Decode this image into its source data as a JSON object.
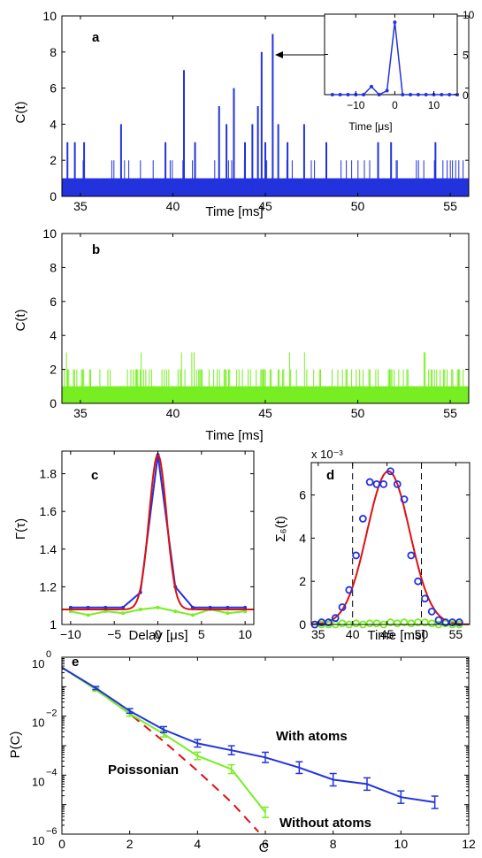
{
  "colors": {
    "with_atoms": "#2233dd",
    "without_atoms": "#77ee22",
    "fit": "#dd1111",
    "axis": "#000000"
  },
  "chart_data": [
    {
      "panel": "a",
      "type": "bar",
      "xlabel": "Time [ms]",
      "ylabel": "C(t)",
      "xlim": [
        34,
        56
      ],
      "ylim": [
        0,
        10
      ],
      "xticks": [
        35,
        40,
        45,
        50,
        55
      ],
      "yticks": [
        0,
        2,
        4,
        6,
        8,
        10
      ],
      "color": "#2233dd",
      "baseline": 1,
      "spikes": [
        {
          "x": 34.3,
          "y": 3
        },
        {
          "x": 34.7,
          "y": 3
        },
        {
          "x": 35.2,
          "y": 3
        },
        {
          "x": 37.2,
          "y": 4
        },
        {
          "x": 39.6,
          "y": 3
        },
        {
          "x": 40.6,
          "y": 7
        },
        {
          "x": 41.2,
          "y": 3
        },
        {
          "x": 42.5,
          "y": 5
        },
        {
          "x": 42.9,
          "y": 4
        },
        {
          "x": 43.3,
          "y": 6
        },
        {
          "x": 43.9,
          "y": 3
        },
        {
          "x": 44.3,
          "y": 4
        },
        {
          "x": 44.6,
          "y": 5
        },
        {
          "x": 44.8,
          "y": 8
        },
        {
          "x": 45.0,
          "y": 3
        },
        {
          "x": 45.4,
          "y": 9
        },
        {
          "x": 45.7,
          "y": 4
        },
        {
          "x": 46.2,
          "y": 3
        },
        {
          "x": 47.1,
          "y": 4
        },
        {
          "x": 48.3,
          "y": 3
        },
        {
          "x": 51.1,
          "y": 3
        },
        {
          "x": 51.8,
          "y": 3
        },
        {
          "x": 54.2,
          "y": 3
        }
      ],
      "inset": {
        "type": "line",
        "xlabel": "Time [μs]",
        "xlim": [
          -18,
          16
        ],
        "ylim": [
          0,
          10
        ],
        "xticks": [
          -10,
          0,
          10
        ],
        "yticks": [
          0,
          5,
          10
        ],
        "x": [
          -16,
          -14,
          -12,
          -10,
          -8,
          -6,
          -4,
          -2,
          0,
          2,
          4,
          6,
          8,
          10,
          12,
          14,
          16
        ],
        "y": [
          0,
          0,
          0,
          0,
          0,
          1,
          0,
          0.5,
          9,
          0,
          0,
          0,
          0,
          0,
          0,
          0,
          0
        ]
      }
    },
    {
      "panel": "b",
      "type": "bar",
      "xlabel": "Time [ms]",
      "ylabel": "C(t)",
      "xlim": [
        34,
        56
      ],
      "ylim": [
        0,
        10
      ],
      "xticks": [
        35,
        40,
        45,
        50,
        55
      ],
      "yticks": [
        0,
        2,
        4,
        6,
        8,
        10
      ],
      "color": "#77ee22",
      "baseline": 1,
      "max_value": 3
    },
    {
      "panel": "c",
      "type": "line",
      "xlabel": "Delay [μs]",
      "ylabel": "Γ(τ)",
      "xlim": [
        -11,
        11
      ],
      "ylim": [
        1.0,
        1.92
      ],
      "xticks": [
        -10,
        -5,
        0,
        5,
        10
      ],
      "yticks": [
        1,
        1.2,
        1.4,
        1.6,
        1.8
      ],
      "series": [
        {
          "color": "#2233dd",
          "x": [
            -10,
            -8,
            -6,
            -4,
            -2,
            0,
            2,
            4,
            6,
            8,
            10
          ],
          "y": [
            1.09,
            1.09,
            1.09,
            1.09,
            1.17,
            1.9,
            1.2,
            1.09,
            1.09,
            1.09,
            1.09
          ]
        },
        {
          "color": "#77ee22",
          "x": [
            -10,
            -8,
            -6,
            -4,
            -2,
            0,
            2,
            4,
            6,
            8,
            10
          ],
          "y": [
            1.07,
            1.05,
            1.07,
            1.06,
            1.08,
            1.09,
            1.07,
            1.05,
            1.08,
            1.06,
            1.07
          ]
        },
        {
          "color": "#dd1111",
          "fit": "gaussian",
          "amplitude": 0.82,
          "offset": 1.08,
          "sigma": 1.0
        }
      ]
    },
    {
      "panel": "d",
      "type": "scatter",
      "xlabel": "Time [ms]",
      "ylabel": "Σ₆(t)",
      "exponent_label": "x 10⁻³",
      "xlim": [
        34,
        57
      ],
      "ylim": [
        0,
        7.5
      ],
      "xticks": [
        35,
        40,
        45,
        50,
        55
      ],
      "yticks": [
        0,
        2,
        4,
        6
      ],
      "dashed_lines_x": [
        40,
        50
      ],
      "series": [
        {
          "color": "#2233dd",
          "x": [
            34.5,
            35.5,
            36.5,
            37.5,
            38.5,
            39.5,
            40.5,
            41.5,
            42.5,
            43.5,
            44.5,
            45.5,
            46.5,
            47.5,
            48.5,
            49.5,
            50.5,
            51.5,
            52.5,
            53.5,
            54.5,
            55.5
          ],
          "y": [
            0,
            0.1,
            0.1,
            0.3,
            0.8,
            1.6,
            3.2,
            4.9,
            6.6,
            6.5,
            6.5,
            7.1,
            6.5,
            5.8,
            3.2,
            2.0,
            1.2,
            0.6,
            0.2,
            0.1,
            0.1,
            0.1
          ]
        },
        {
          "color": "#77ee22",
          "x": [
            34.5,
            35.5,
            36.5,
            37.5,
            38.5,
            39.5,
            40.5,
            41.5,
            42.5,
            43.5,
            44.5,
            45.5,
            46.5,
            47.5,
            48.5,
            49.5,
            50.5,
            51.5,
            52.5,
            53.5,
            54.5,
            55.5
          ],
          "y": [
            0,
            0,
            0,
            0,
            0.05,
            0,
            0.05,
            0,
            0.05,
            0.05,
            0,
            0.1,
            0.05,
            0.1,
            0.05,
            0.1,
            0.1,
            0.05,
            0,
            0.05,
            0,
            0
          ]
        },
        {
          "color": "#dd1111",
          "fit": "gaussian",
          "amplitude": 7.1,
          "center": 45.2,
          "sigma": 3.1
        }
      ]
    },
    {
      "panel": "e",
      "type": "line",
      "xlabel": "C",
      "ylabel": "P(C)",
      "yscale": "log",
      "xlim": [
        0,
        12
      ],
      "ylim": [
        1e-06,
        1
      ],
      "xticks": [
        0,
        2,
        4,
        6,
        8,
        10,
        12
      ],
      "ytick_labels": [
        {
          "base": "10",
          "exp": "0"
        },
        {
          "base": "10",
          "exp": "−2"
        },
        {
          "base": "10",
          "exp": "−4"
        },
        {
          "base": "10",
          "exp": "−6"
        }
      ],
      "series": [
        {
          "name": "With atoms",
          "color": "#2233dd",
          "x": [
            0,
            1,
            2,
            3,
            4,
            5,
            6,
            7,
            8,
            9,
            10,
            11
          ],
          "y": [
            0.45,
            0.09,
            0.015,
            0.0035,
            0.0012,
            0.0007,
            0.0004,
            0.00018,
            7e-05,
            5e-05,
            1.8e-05,
            1.2e-05
          ]
        },
        {
          "name": "Without atoms",
          "color": "#77ee22",
          "x": [
            0,
            1,
            2,
            3,
            4,
            5,
            6
          ],
          "y": [
            0.45,
            0.08,
            0.012,
            0.0025,
            0.00045,
            0.00016,
            5.5e-06
          ]
        },
        {
          "name": "Poissonian",
          "color": "#dd1111",
          "dashed": true,
          "x": [
            1,
            2,
            3,
            4,
            5,
            5.8
          ],
          "y": [
            0.08,
            0.012,
            0.0014,
            0.00014,
            1.2e-05,
            1.2e-06
          ]
        }
      ]
    }
  ],
  "panel_labels": [
    "a",
    "b",
    "c",
    "d",
    "e"
  ]
}
